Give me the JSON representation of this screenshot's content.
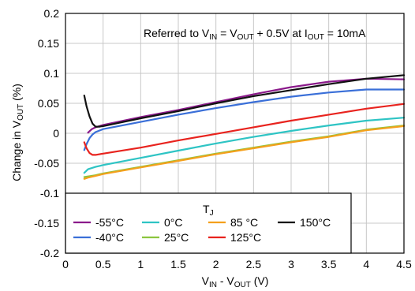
{
  "chart_data": {
    "type": "line",
    "annotation": {
      "prefix": "Referred to V",
      "sub1": "IN",
      "mid1": " = V",
      "sub2": "OUT",
      "mid2": " + 0.5V at I",
      "sub3": "OUT",
      "suffix": " = 10mA"
    },
    "xlabel": {
      "v1": "V",
      "s1": "IN",
      "mid": " - V",
      "s2": "OUT",
      "unit": " (V)"
    },
    "ylabel": {
      "pre": "Change in V",
      "sub": "OUT",
      "unit": " (%)"
    },
    "xlim": [
      0,
      4.5
    ],
    "ylim": [
      -0.2,
      0.2
    ],
    "xticks": [
      "0",
      "0.5",
      "1",
      "1.5",
      "2",
      "2.5",
      "3",
      "3.5",
      "4",
      "4.5"
    ],
    "yticks": [
      "0.2",
      "0.15",
      "0.1",
      "0.05",
      "0",
      "-0.05",
      "-0.1",
      "-0.15",
      "-0.2"
    ],
    "grid": true,
    "legend": {
      "title": "T",
      "title_sub": "J",
      "placement": "bottom-left"
    },
    "series": [
      {
        "name": "-55°C",
        "color": "#8B1A8B",
        "x": [
          0.3,
          0.35,
          0.4,
          0.5,
          1.0,
          1.5,
          2.0,
          2.5,
          3.0,
          3.5,
          4.0,
          4.5
        ],
        "y": [
          0.001,
          0.007,
          0.01,
          0.014,
          0.027,
          0.039,
          0.052,
          0.065,
          0.077,
          0.086,
          0.091,
          0.09
        ]
      },
      {
        "name": "-40°C",
        "color": "#3A6FD8",
        "x": [
          0.25,
          0.28,
          0.32,
          0.36,
          0.4,
          0.5,
          1.0,
          1.5,
          2.0,
          2.5,
          3.0,
          3.5,
          4.0,
          4.5
        ],
        "y": [
          -0.028,
          -0.018,
          -0.008,
          -0.002,
          0.002,
          0.007,
          0.019,
          0.031,
          0.042,
          0.052,
          0.061,
          0.068,
          0.073,
          0.073
        ]
      },
      {
        "name": "0°C",
        "color": "#2EC4C4",
        "x": [
          0.25,
          0.3,
          0.4,
          0.5,
          1.0,
          1.5,
          2.0,
          2.5,
          3.0,
          3.5,
          4.0,
          4.5
        ],
        "y": [
          -0.066,
          -0.06,
          -0.056,
          -0.053,
          -0.041,
          -0.029,
          -0.017,
          -0.006,
          0.004,
          0.013,
          0.021,
          0.026
        ]
      },
      {
        "name": "25°C",
        "color": "#8CC63F",
        "x": [
          0.25,
          0.3,
          0.4,
          0.5,
          1.0,
          1.5,
          2.0,
          2.5,
          3.0,
          3.5,
          4.0,
          4.5
        ],
        "y": [
          -0.073,
          -0.072,
          -0.07,
          -0.067,
          -0.056,
          -0.045,
          -0.034,
          -0.024,
          -0.014,
          -0.005,
          0.006,
          0.013
        ]
      },
      {
        "name": "85 °C",
        "color": "#F4A01C",
        "x": [
          0.25,
          0.3,
          0.4,
          0.5,
          1.0,
          1.5,
          2.0,
          2.5,
          3.0,
          3.5,
          4.0,
          4.5
        ],
        "y": [
          -0.076,
          -0.074,
          -0.071,
          -0.068,
          -0.057,
          -0.046,
          -0.035,
          -0.025,
          -0.015,
          -0.006,
          0.005,
          0.012
        ]
      },
      {
        "name": "125°C",
        "color": "#E8231E",
        "x": [
          0.25,
          0.28,
          0.32,
          0.36,
          0.4,
          0.5,
          1.0,
          1.5,
          2.0,
          2.5,
          3.0,
          3.5,
          4.0,
          4.5
        ],
        "y": [
          -0.015,
          -0.025,
          -0.033,
          -0.036,
          -0.036,
          -0.034,
          -0.024,
          -0.012,
          -0.001,
          0.01,
          0.021,
          0.031,
          0.041,
          0.049
        ]
      },
      {
        "name": "150°C",
        "color": "#111111",
        "x": [
          0.25,
          0.28,
          0.32,
          0.36,
          0.4,
          0.45,
          0.5,
          1.0,
          1.5,
          2.0,
          2.5,
          3.0,
          3.5,
          4.0,
          4.5
        ],
        "y": [
          0.063,
          0.045,
          0.028,
          0.016,
          0.011,
          0.011,
          0.012,
          0.025,
          0.037,
          0.05,
          0.062,
          0.072,
          0.082,
          0.091,
          0.097
        ]
      }
    ]
  }
}
